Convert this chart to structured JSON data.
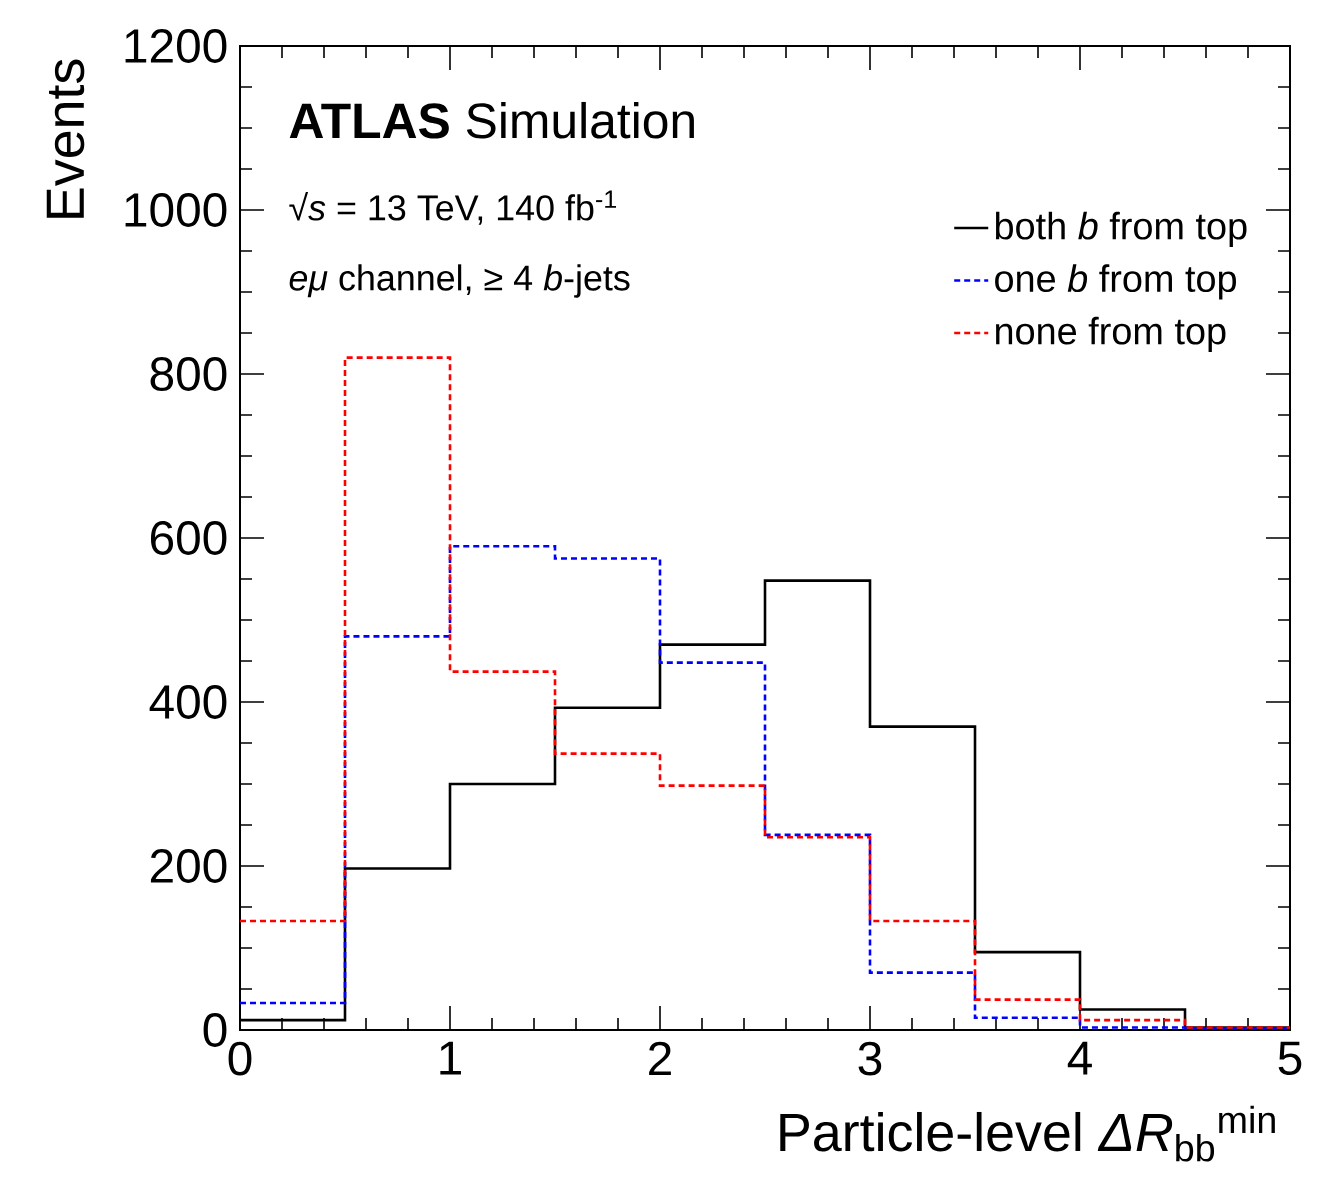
{
  "chart_data": {
    "type": "histogram",
    "title": "**ATLAS** Simulation",
    "annotations": [
      "√*s* = 13 TeV, 140 fb$^{-1}$",
      "*eμ* channel, ≥ 4 *b*-jets"
    ],
    "xlabel": "Particle-level *ΔR*$_{bb}$$^{min}$",
    "ylabel": "Events",
    "bins": [
      0,
      0.5,
      1,
      1.5,
      2,
      2.5,
      3,
      3.5,
      4,
      4.5,
      5
    ],
    "series": [
      {
        "name": "both *b* from top",
        "color": "#000000",
        "line_style": "solid",
        "values": [
          12,
          197,
          300,
          393,
          470,
          548,
          370,
          95,
          25,
          3
        ]
      },
      {
        "name": "one *b* from top",
        "color": "#0000ff",
        "line_style": "dashed",
        "values": [
          33,
          480,
          590,
          575,
          448,
          238,
          70,
          15,
          3,
          2
        ]
      },
      {
        "name": "none from top",
        "color": "#ff0000",
        "line_style": "dashed",
        "values": [
          133,
          820,
          437,
          337,
          298,
          235,
          133,
          37,
          12,
          3
        ]
      }
    ],
    "xlim": [
      0,
      5
    ],
    "ylim": [
      0,
      1200
    ],
    "xticks": [
      0,
      1,
      2,
      3,
      4,
      5
    ],
    "yticks": [
      0,
      200,
      400,
      600,
      800,
      1000,
      1200
    ],
    "legend": "top right",
    "grid": false
  }
}
